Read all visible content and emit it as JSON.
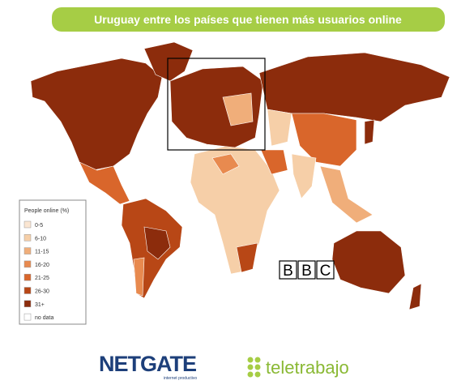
{
  "header": {
    "title": "Uruguay entre los países que tienen más usuarios online"
  },
  "legend": {
    "title": "People online (%)",
    "items": [
      {
        "label": "0-5",
        "color": "#fbe6d2"
      },
      {
        "label": "6-10",
        "color": "#f6cfa8"
      },
      {
        "label": "11-15",
        "color": "#f0ae7a"
      },
      {
        "label": "16-20",
        "color": "#e88a4f"
      },
      {
        "label": "21-25",
        "color": "#d9662b"
      },
      {
        "label": "26-30",
        "color": "#b84716"
      },
      {
        "label": "31+",
        "color": "#8c2c0c"
      },
      {
        "label": "no data",
        "color": "#ffffff"
      }
    ]
  },
  "source": [
    "B",
    "B",
    "C"
  ],
  "logos": {
    "netgate": {
      "name": "NETGATE",
      "tagline": "internet productivo"
    },
    "teletrabajo": "teletrabajo"
  }
}
